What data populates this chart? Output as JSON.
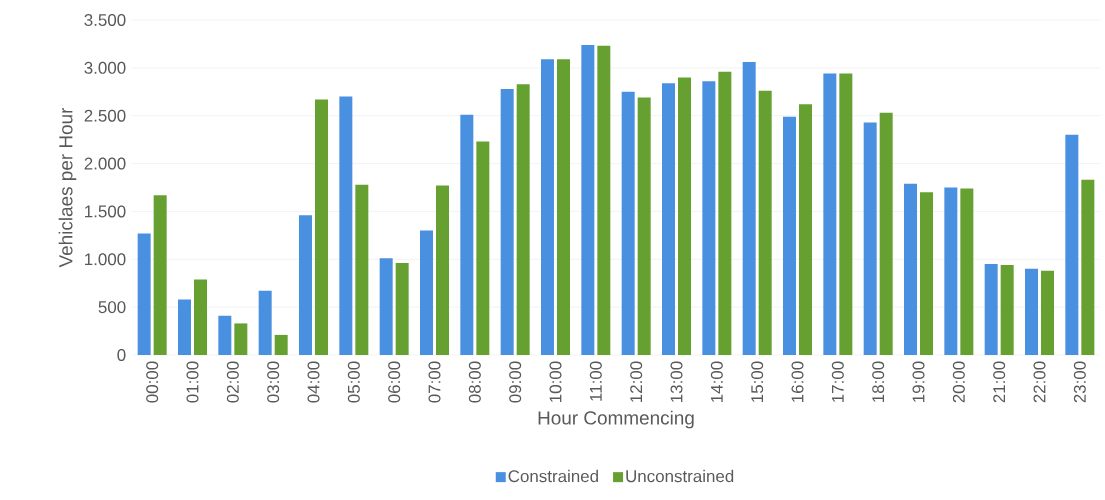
{
  "chart_data": {
    "type": "bar",
    "xlabel": "Hour Commencing",
    "ylabel": "Vehiclaes per Hour",
    "categories": [
      "00:00",
      "01:00",
      "02:00",
      "03:00",
      "04:00",
      "05:00",
      "06:00",
      "07:00",
      "08:00",
      "09:00",
      "10:00",
      "11:00",
      "12:00",
      "13:00",
      "14:00",
      "15:00",
      "16:00",
      "17:00",
      "18:00",
      "19:00",
      "20:00",
      "21:00",
      "22:00",
      "23:00"
    ],
    "series": [
      {
        "name": "Constrained",
        "color": "#4a90e0",
        "values": [
          1270,
          580,
          410,
          670,
          1460,
          2700,
          1010,
          1300,
          2510,
          2780,
          3090,
          3240,
          2750,
          2840,
          2860,
          3060,
          2490,
          2940,
          2430,
          1790,
          1750,
          950,
          900,
          2300
        ]
      },
      {
        "name": "Unconstrained",
        "color": "#66a030",
        "values": [
          1670,
          790,
          330,
          210,
          2670,
          1780,
          960,
          1770,
          2230,
          2830,
          3090,
          3230,
          2690,
          2900,
          2960,
          2760,
          2620,
          2940,
          2530,
          1700,
          1740,
          940,
          880,
          1830
        ]
      }
    ],
    "ylim": [
      0,
      3500
    ],
    "yticks": [
      0,
      500,
      {
        "value": 1000,
        "label": "1.000"
      },
      {
        "value": 1500,
        "label": "1.500"
      },
      {
        "value": 2000,
        "label": "2.000"
      },
      {
        "value": 2500,
        "label": "2.500"
      },
      {
        "value": 3000,
        "label": "3.000"
      },
      {
        "value": 3500,
        "label": "3.500"
      }
    ],
    "grid": "y",
    "legend": "bottom"
  }
}
